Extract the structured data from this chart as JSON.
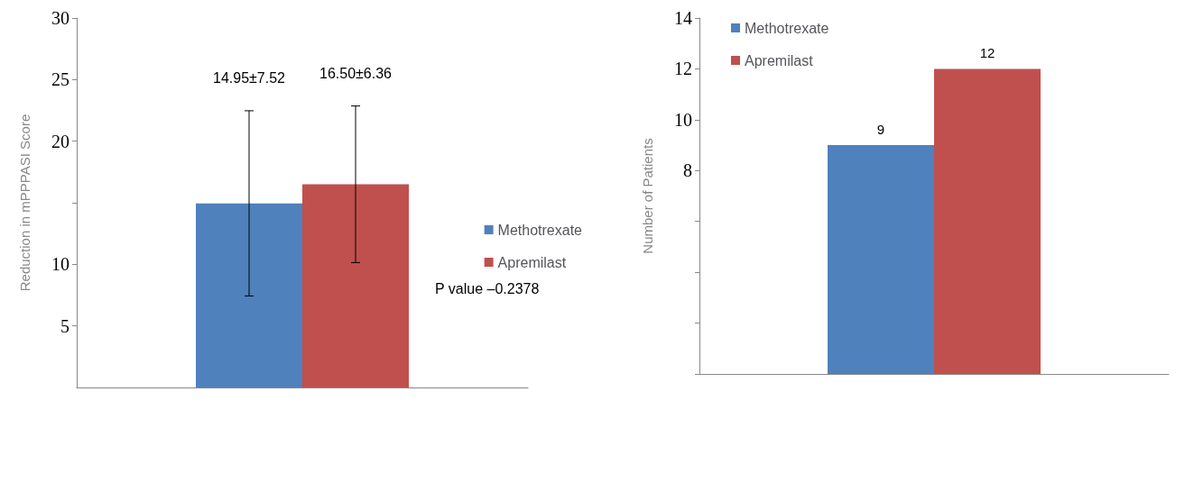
{
  "chart_data": [
    {
      "type": "bar",
      "ylabel": "Reduction in mPPPASI Score",
      "categories": [
        null
      ],
      "series": [
        {
          "name": "Methotrexate",
          "color": "#4f81bd",
          "values": [
            14.95
          ],
          "errors": [
            7.52
          ]
        },
        {
          "name": "Apremilast",
          "color": "#c0504d",
          "values": [
            16.5
          ],
          "errors": [
            6.36
          ]
        }
      ],
      "ylim": [
        0,
        30
      ],
      "yticks": [
        5,
        10,
        {
          "value": 15,
          "label": null
        },
        20,
        25,
        30
      ],
      "legend": "right",
      "annotations": [
        "14.95±7.52",
        "16.50±6.36",
        "P value –0.2378"
      ]
    },
    {
      "type": "bar",
      "ylabel": "Number of Patients",
      "categories": [
        null
      ],
      "series": [
        {
          "name": "Methotrexate",
          "color": "#4f81bd",
          "values": [
            9
          ]
        },
        {
          "name": "Apremilast",
          "color": "#c0504d",
          "values": [
            12
          ]
        }
      ],
      "data_labels": true,
      "ylim": [
        0,
        14
      ],
      "yticks": [
        {
          "value": 0,
          "label": null
        },
        {
          "value": 2,
          "label": null
        },
        {
          "value": 4,
          "label": null
        },
        {
          "value": 6,
          "label": null
        },
        8,
        10,
        12,
        14
      ],
      "legend": "top left"
    }
  ]
}
